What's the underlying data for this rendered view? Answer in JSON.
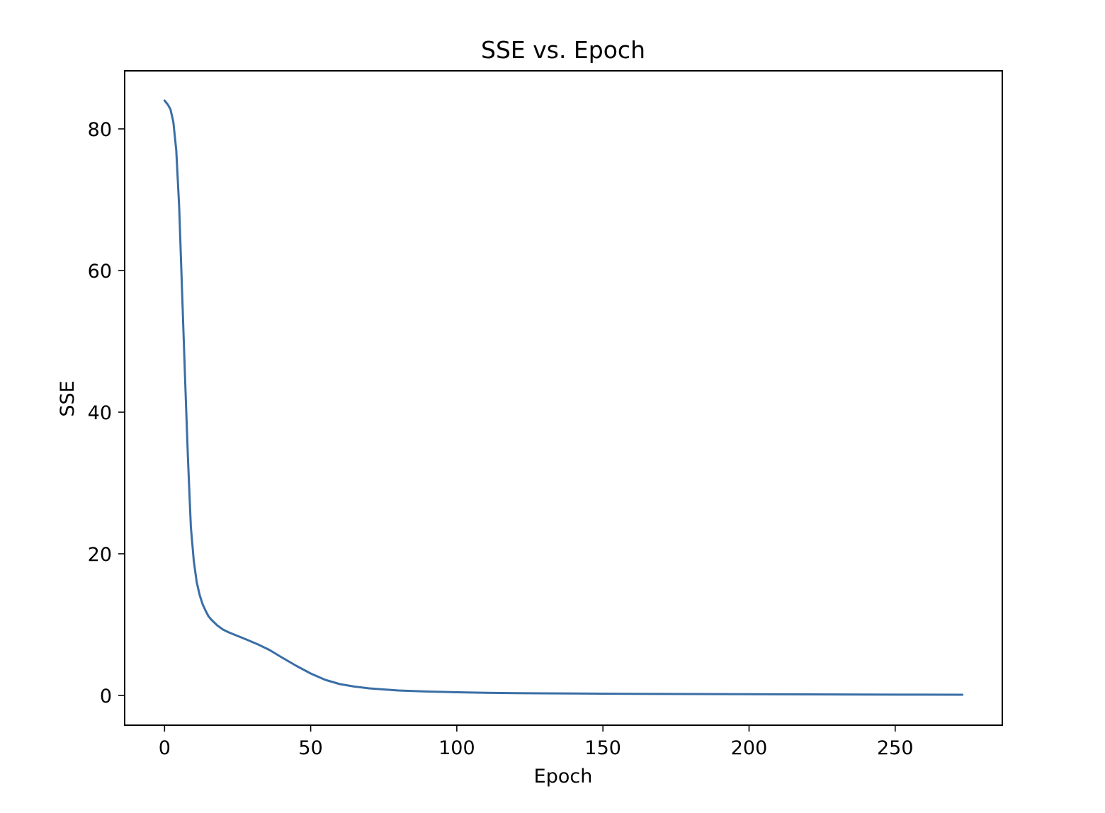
{
  "chart_data": {
    "type": "line",
    "title": "SSE vs. Epoch",
    "xlabel": "Epoch",
    "ylabel": "SSE",
    "xlim": [
      -13.65,
      286.65
    ],
    "ylim": [
      -4.2,
      88.2
    ],
    "grid": false,
    "legend": "none",
    "xticks": [
      0,
      50,
      100,
      150,
      200,
      250
    ],
    "xtick_labels": [
      "0",
      "50",
      "100",
      "150",
      "200",
      "250"
    ],
    "yticks": [
      0,
      20,
      40,
      60,
      80
    ],
    "ytick_labels": [
      "0",
      "20",
      "40",
      "60",
      "80"
    ],
    "series": [
      {
        "color": "#3a6ea5",
        "x": [
          0,
          1,
          2,
          3,
          4,
          5,
          6,
          7,
          8,
          9,
          10,
          11,
          12,
          13,
          14,
          15,
          16,
          18,
          20,
          22,
          25,
          28,
          32,
          36,
          40,
          45,
          50,
          55,
          60,
          65,
          70,
          75,
          80,
          90,
          100,
          110,
          120,
          140,
          160,
          180,
          200,
          220,
          240,
          260,
          273
        ],
        "y": [
          84.0,
          83.5,
          82.8,
          81.0,
          77.0,
          69.0,
          57.0,
          45.0,
          33.5,
          23.8,
          19.0,
          16.0,
          14.2,
          12.9,
          12.0,
          11.2,
          10.7,
          9.9,
          9.3,
          8.9,
          8.4,
          7.9,
          7.2,
          6.4,
          5.4,
          4.2,
          3.1,
          2.2,
          1.6,
          1.25,
          1.0,
          0.85,
          0.7,
          0.55,
          0.45,
          0.38,
          0.33,
          0.27,
          0.23,
          0.2,
          0.17,
          0.15,
          0.13,
          0.11,
          0.1
        ]
      }
    ]
  }
}
